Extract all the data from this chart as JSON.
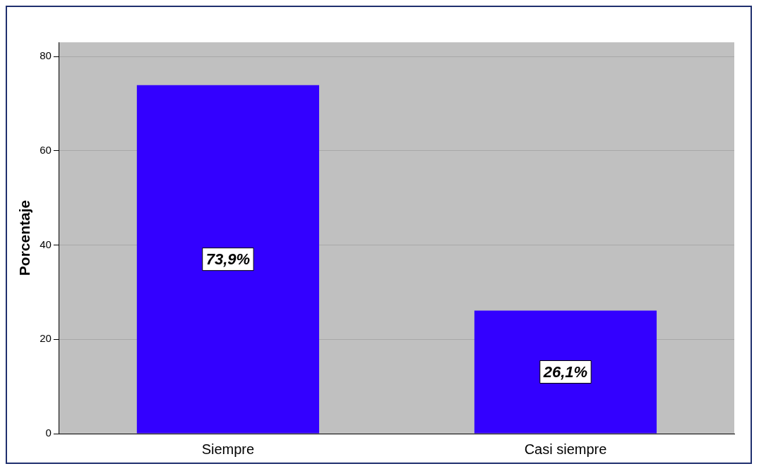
{
  "chart_data": {
    "type": "bar",
    "ylabel": "Porcentaje",
    "categories": [
      "Siempre",
      "Casi siempre"
    ],
    "values": [
      73.9,
      26.1
    ],
    "color": "#3300ff",
    "value_labels": [
      "73,9%",
      "26,1%"
    ],
    "ylim": [
      0,
      83
    ],
    "yticks": [
      0,
      20,
      40,
      60,
      80
    ],
    "grid": "y",
    "legend": false
  }
}
